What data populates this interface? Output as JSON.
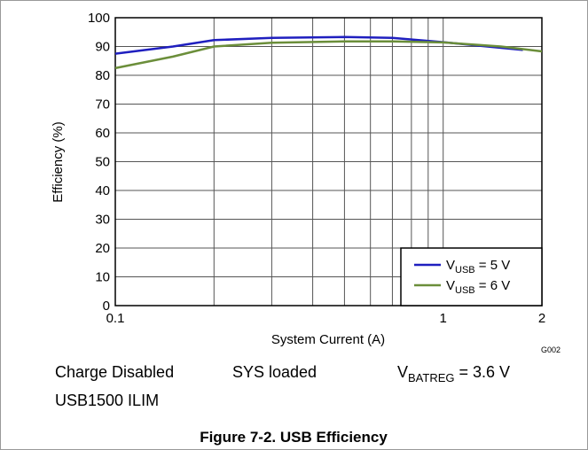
{
  "chart_data": {
    "type": "line",
    "xlabel": "System Current (A)",
    "ylabel": "Efficiency (%)",
    "xlog": true,
    "xlim": [
      0.1,
      2
    ],
    "xticks": [
      0.1,
      1,
      2
    ],
    "xminor_ticks": [
      0.2,
      0.3,
      0.4,
      0.5,
      0.6,
      0.7,
      0.8,
      0.9
    ],
    "ylim": [
      0,
      100
    ],
    "yticks": [
      0,
      10,
      20,
      30,
      40,
      50,
      60,
      70,
      80,
      90,
      100
    ],
    "grid": true,
    "legend": "lower right",
    "series": [
      {
        "name": {
          "main": "V",
          "sub": "USB",
          "rest": " = 5 V"
        },
        "color": "#1f1fbf",
        "x": [
          0.1,
          0.15,
          0.2,
          0.3,
          0.5,
          0.7,
          1,
          1.3,
          1.75
        ],
        "values": [
          87.5,
          90,
          92.2,
          93,
          93.3,
          93,
          91.5,
          90.2,
          88.8
        ]
      },
      {
        "name": {
          "main": "V",
          "sub": "USB",
          "rest": " = 6 V"
        },
        "color": "#6b8e3a",
        "x": [
          0.1,
          0.15,
          0.2,
          0.3,
          0.5,
          0.7,
          1,
          1.5,
          2
        ],
        "values": [
          82.5,
          86.5,
          90,
          91.3,
          91.8,
          91.8,
          91.4,
          90,
          88.3
        ]
      }
    ],
    "code": "G002",
    "notes": {
      "charge": "Charge Disabled",
      "sys": "SYS loaded",
      "vbat": {
        "main": "V",
        "sub": "BATREG",
        "rest": " = 3.6 V"
      },
      "ilim": "USB1500 ILIM"
    },
    "caption": "Figure 7-2. USB Efficiency"
  }
}
